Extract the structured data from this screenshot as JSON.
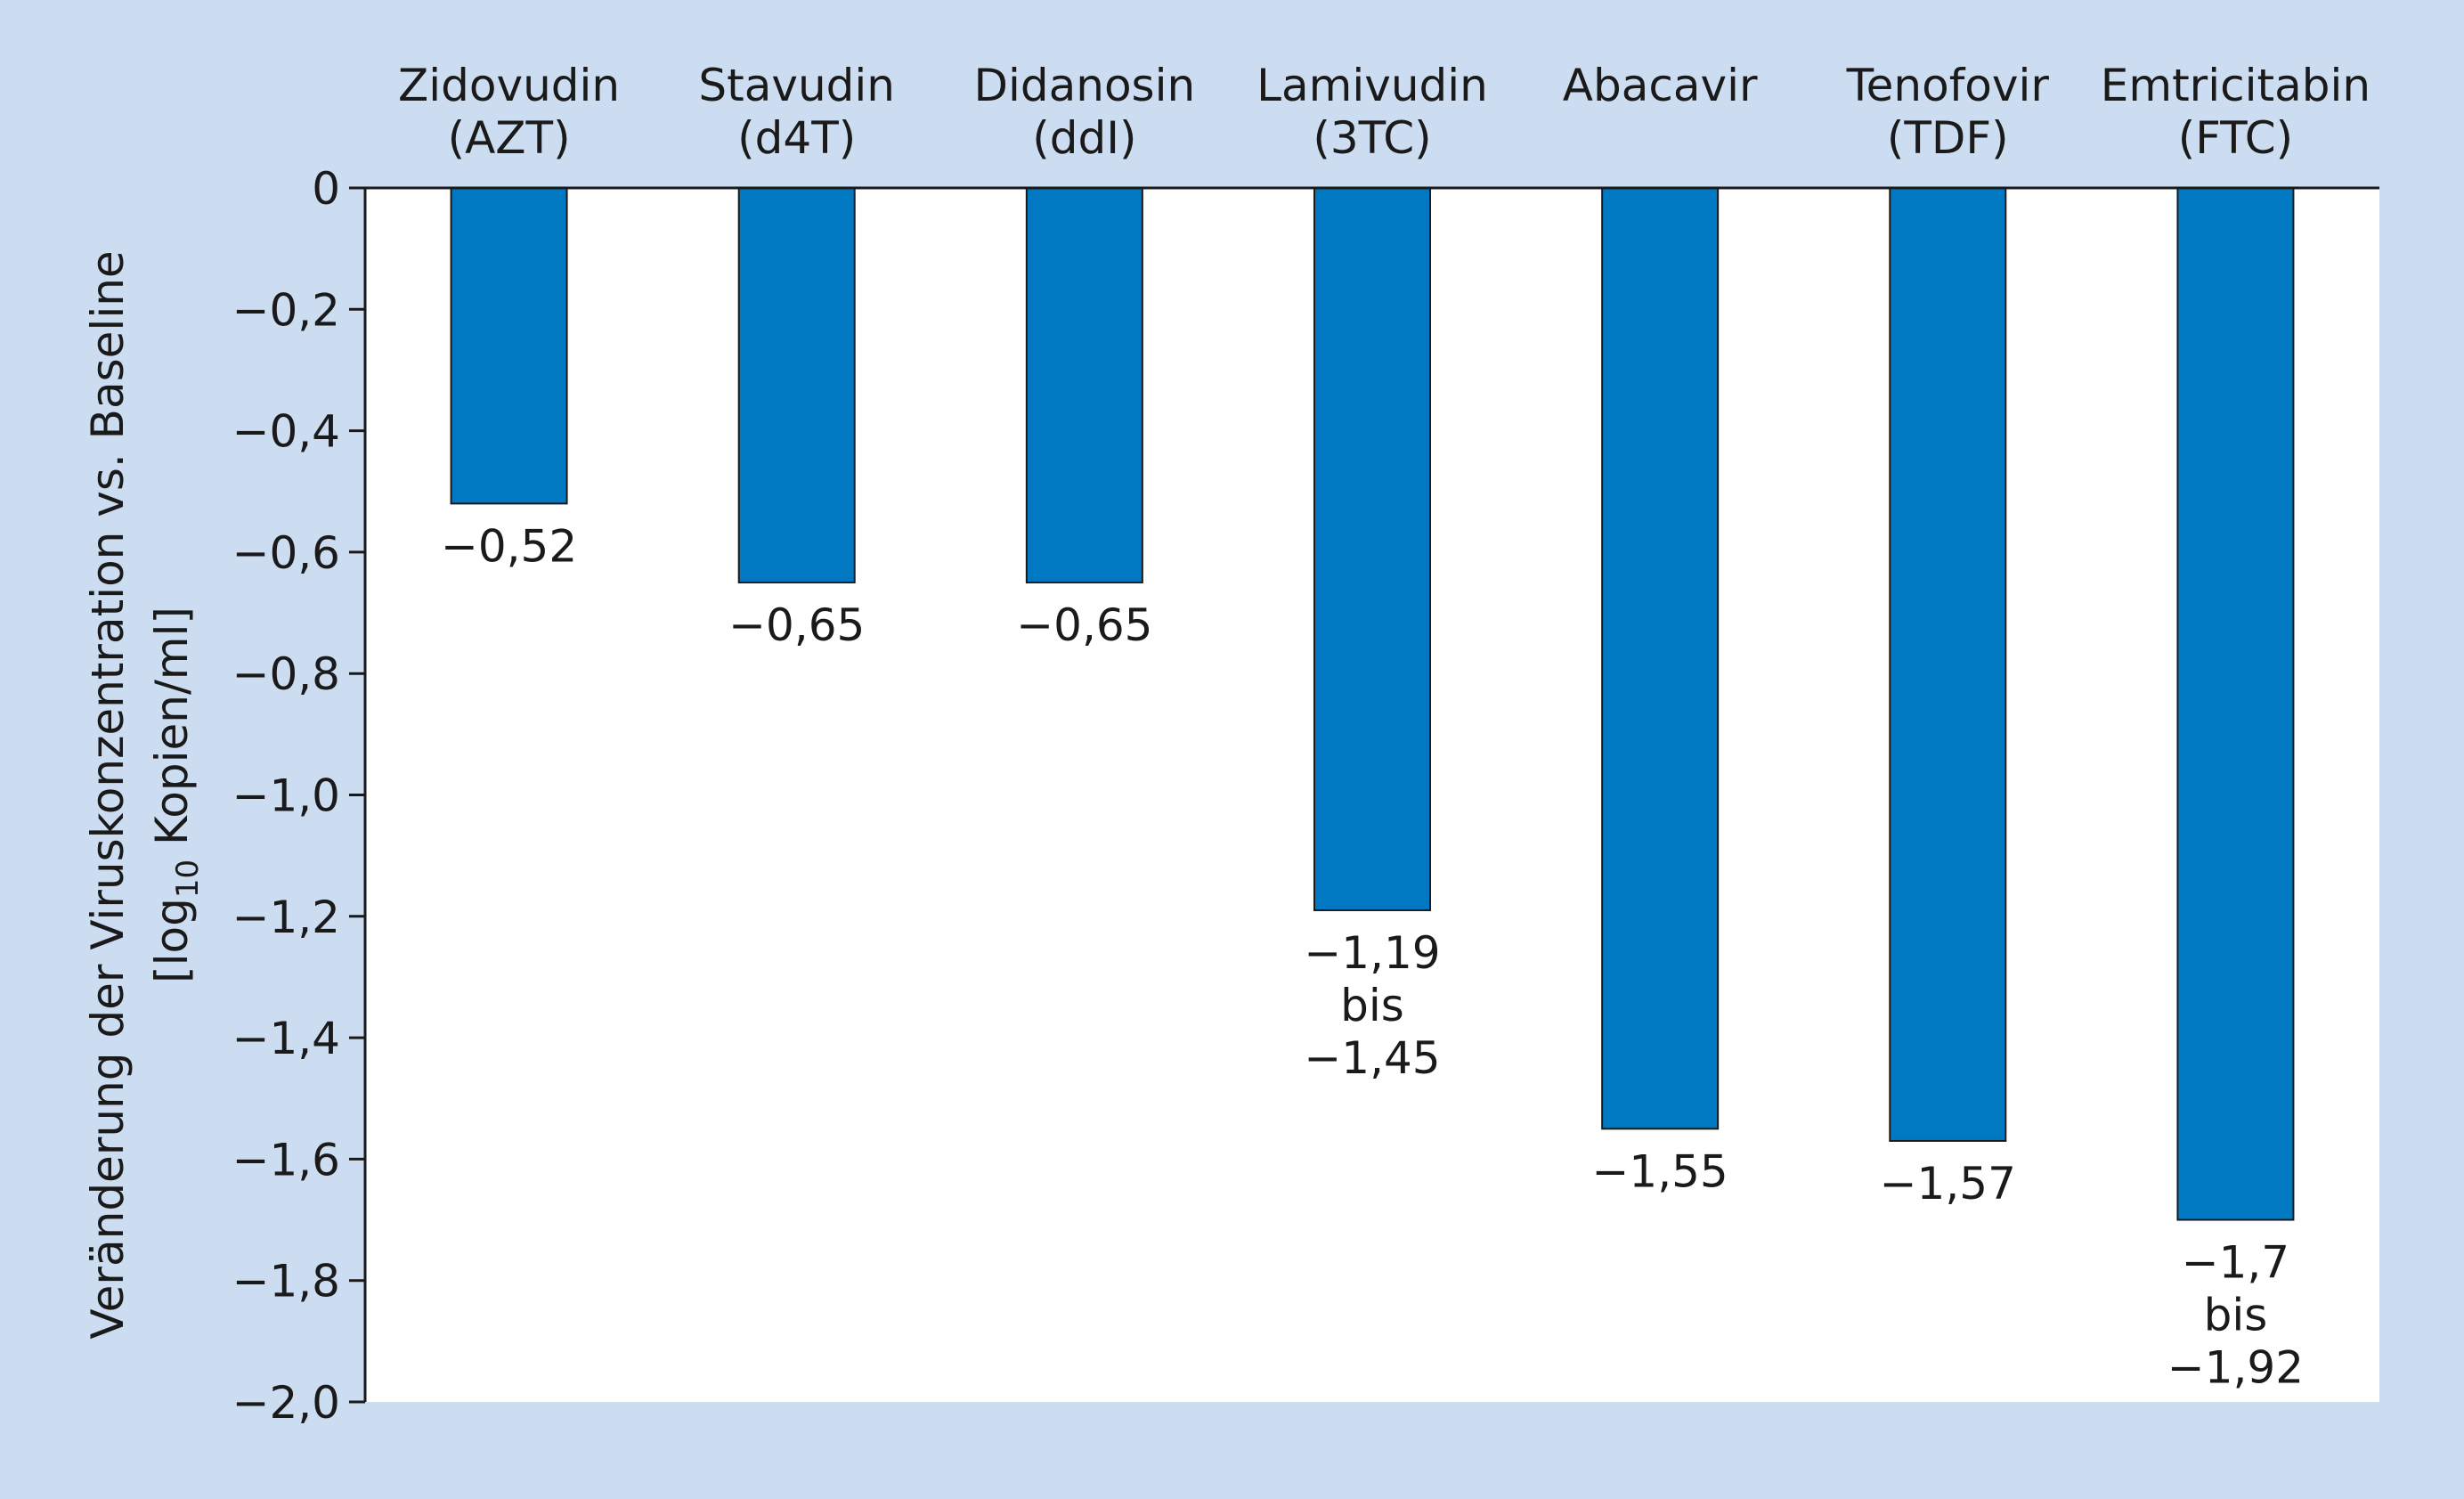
{
  "chart_data": {
    "type": "bar",
    "title": "",
    "xlabel": "",
    "ylabel_line1": "Veränderung der Viruskonzentration vs. Baseline",
    "ylabel_line2_pre": "[log",
    "ylabel_line2_sub": "10",
    "ylabel_line2_post": " Kopien/ml]",
    "ylim": [
      -2.0,
      0
    ],
    "yticks": [
      0,
      -0.2,
      -0.4,
      -0.6,
      -0.8,
      -1.0,
      -1.2,
      -1.4,
      -1.6,
      -1.8,
      -2.0
    ],
    "ytick_labels": [
      "0",
      "−0,2",
      "−0,4",
      "−0,6",
      "−0,8",
      "−1,0",
      "−1,2",
      "−1,4",
      "−1,6",
      "−1,8",
      "−2,0"
    ],
    "grid": false,
    "categories": [
      [
        "Zidovudin",
        "(AZT)"
      ],
      [
        "Stavudin",
        "(d4T)"
      ],
      [
        "Didanosin",
        "(ddI)"
      ],
      [
        "Lamivudin",
        "(3TC)"
      ],
      [
        "Abacavir"
      ],
      [
        "Tenofovir",
        "(TDF)"
      ],
      [
        "Emtricitabin",
        "(FTC)"
      ]
    ],
    "values": [
      -0.52,
      -0.65,
      -0.65,
      -1.19,
      -1.55,
      -1.57,
      -1.7
    ],
    "data_labels": [
      [
        "−0,52"
      ],
      [
        "−0,65"
      ],
      [
        "−0,65"
      ],
      [
        "−1,19",
        "bis",
        "−1,45"
      ],
      [
        "−1,55"
      ],
      [
        "−1,57"
      ],
      [
        "−1,7",
        "bis",
        "−1,92"
      ]
    ],
    "colors": {
      "bar": "#0079c2",
      "background": "#ccdcf1",
      "plot_background": "#ffffff",
      "axis": "#1a1a1a"
    }
  }
}
